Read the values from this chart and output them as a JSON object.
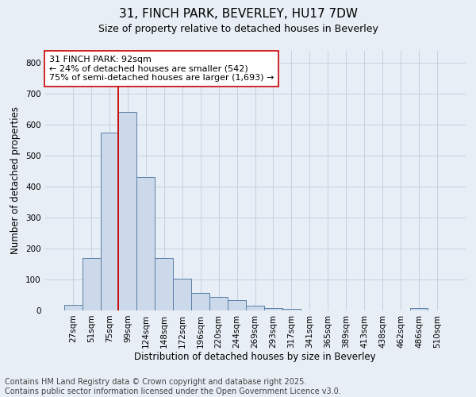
{
  "title1": "31, FINCH PARK, BEVERLEY, HU17 7DW",
  "title2": "Size of property relative to detached houses in Beverley",
  "xlabel": "Distribution of detached houses by size in Beverley",
  "ylabel": "Number of detached properties",
  "bins": [
    "27sqm",
    "51sqm",
    "75sqm",
    "99sqm",
    "124sqm",
    "148sqm",
    "172sqm",
    "196sqm",
    "220sqm",
    "244sqm",
    "269sqm",
    "293sqm",
    "317sqm",
    "341sqm",
    "365sqm",
    "389sqm",
    "413sqm",
    "438sqm",
    "462sqm",
    "486sqm",
    "510sqm"
  ],
  "bar_heights": [
    17,
    170,
    575,
    640,
    430,
    170,
    103,
    57,
    43,
    33,
    15,
    8,
    4,
    1,
    0,
    0,
    0,
    0,
    0,
    7,
    0
  ],
  "bar_color": "#ccd9ea",
  "bar_edge_color": "#5a7fa8",
  "grid_color": "#c5d0e0",
  "background_color": "#e8eef5",
  "vline_x_index": 2.5,
  "vline_color": "#cc0000",
  "annotation_text": "31 FINCH PARK: 92sqm\n← 24% of detached houses are smaller (542)\n75% of semi-detached houses are larger (1,693) →",
  "annotation_box_color": "#ffffff",
  "annotation_box_edge": "#cc0000",
  "ylim": [
    0,
    840
  ],
  "yticks": [
    0,
    100,
    200,
    300,
    400,
    500,
    600,
    700,
    800
  ],
  "footer1": "Contains HM Land Registry data © Crown copyright and database right 2025.",
  "footer2": "Contains public sector information licensed under the Open Government Licence v3.0.",
  "title_fontsize": 11,
  "subtitle_fontsize": 9,
  "axis_label_fontsize": 8.5,
  "tick_fontsize": 7.5,
  "annotation_fontsize": 8,
  "footer_fontsize": 7
}
